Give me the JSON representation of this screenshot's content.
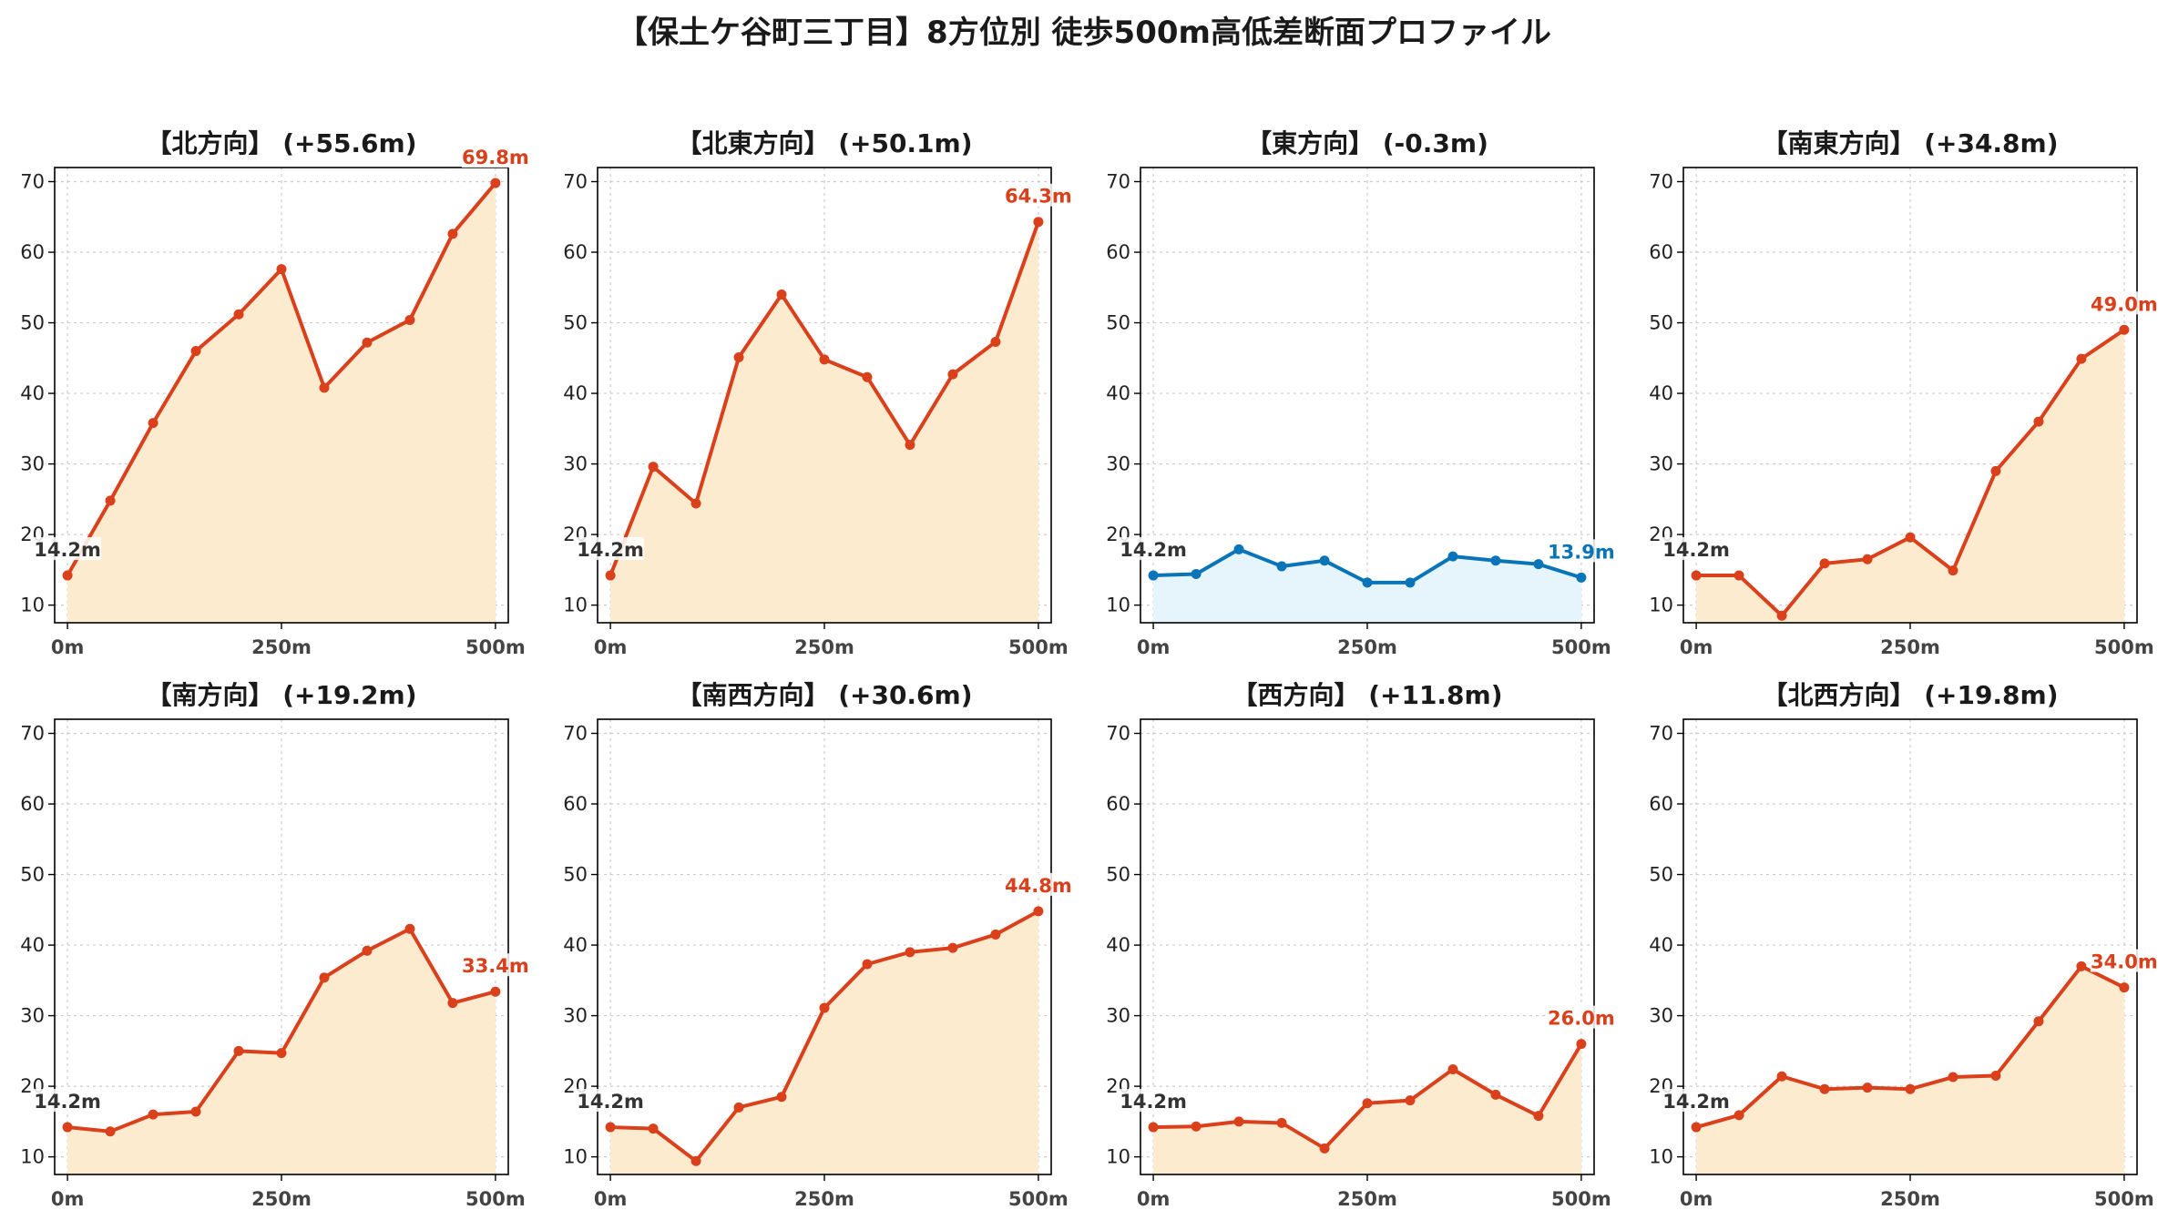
{
  "figure": {
    "title": "【保土ケ谷町三丁目】8方位別 徒歩500m高低差断面プロファイル"
  },
  "style": {
    "up_line": "#d9401b",
    "up_fill": "#fdebd0",
    "down_line": "#0a74b8",
    "down_fill": "#e6f5fb",
    "start_label": "#333333",
    "grid": "#cccccc"
  },
  "axes_common": {
    "xticks": [
      0,
      250,
      500
    ],
    "xticklabels": [
      "0m",
      "250m",
      "500m"
    ],
    "yticks": [
      10,
      20,
      30,
      40,
      50,
      60,
      70
    ],
    "yticklabels": [
      "10",
      "20",
      "30",
      "40",
      "50",
      "60",
      "70"
    ],
    "xlim": [
      -15,
      515
    ],
    "ylim": [
      7.5,
      72
    ],
    "grid": true
  },
  "chart_data": [
    {
      "type": "area",
      "title": "【北方向】 (+55.6m)",
      "trend": "up",
      "x": [
        0,
        50,
        100,
        150,
        200,
        250,
        300,
        350,
        400,
        450,
        500
      ],
      "y": [
        14.2,
        24.8,
        35.8,
        46.0,
        51.2,
        57.6,
        40.8,
        47.2,
        50.4,
        62.6,
        69.8
      ],
      "start_label": "14.2m",
      "end_label": "69.8m"
    },
    {
      "type": "area",
      "title": "【北東方向】 (+50.1m)",
      "trend": "up",
      "x": [
        0,
        50,
        100,
        150,
        200,
        250,
        300,
        350,
        400,
        450,
        500
      ],
      "y": [
        14.2,
        29.6,
        24.4,
        45.1,
        54.0,
        44.8,
        42.3,
        32.7,
        42.7,
        47.3,
        64.3
      ],
      "start_label": "14.2m",
      "end_label": "64.3m"
    },
    {
      "type": "area",
      "title": "【東方向】 (-0.3m)",
      "trend": "down",
      "x": [
        0,
        50,
        100,
        150,
        200,
        250,
        300,
        350,
        400,
        450,
        500
      ],
      "y": [
        14.2,
        14.4,
        17.9,
        15.5,
        16.3,
        13.2,
        13.2,
        16.9,
        16.3,
        15.8,
        13.9
      ],
      "start_label": "14.2m",
      "end_label": "13.9m"
    },
    {
      "type": "area",
      "title": "【南東方向】 (+34.8m)",
      "trend": "up",
      "x": [
        0,
        50,
        100,
        150,
        200,
        250,
        300,
        350,
        400,
        450,
        500
      ],
      "y": [
        14.2,
        14.2,
        8.5,
        15.9,
        16.5,
        19.6,
        14.9,
        29.0,
        36.0,
        44.9,
        49.0
      ],
      "start_label": "14.2m",
      "end_label": "49.0m"
    },
    {
      "type": "area",
      "title": "【南方向】 (+19.2m)",
      "trend": "up",
      "x": [
        0,
        50,
        100,
        150,
        200,
        250,
        300,
        350,
        400,
        450,
        500
      ],
      "y": [
        14.2,
        13.6,
        16.0,
        16.4,
        25.0,
        24.7,
        35.4,
        39.2,
        42.3,
        31.8,
        33.4
      ],
      "start_label": "14.2m",
      "end_label": "33.4m"
    },
    {
      "type": "area",
      "title": "【南西方向】 (+30.6m)",
      "trend": "up",
      "x": [
        0,
        50,
        100,
        150,
        200,
        250,
        300,
        350,
        400,
        450,
        500
      ],
      "y": [
        14.2,
        14.0,
        9.4,
        17.0,
        18.5,
        31.1,
        37.3,
        39.0,
        39.6,
        41.5,
        44.8
      ],
      "start_label": "14.2m",
      "end_label": "44.8m"
    },
    {
      "type": "area",
      "title": "【西方向】 (+11.8m)",
      "trend": "up",
      "x": [
        0,
        50,
        100,
        150,
        200,
        250,
        300,
        350,
        400,
        450,
        500
      ],
      "y": [
        14.2,
        14.3,
        15.0,
        14.8,
        11.2,
        17.6,
        18.0,
        22.4,
        18.8,
        15.8,
        26.0
      ],
      "start_label": "14.2m",
      "end_label": "26.0m"
    },
    {
      "type": "area",
      "title": "【北西方向】 (+19.8m)",
      "trend": "up",
      "x": [
        0,
        50,
        100,
        150,
        200,
        250,
        300,
        350,
        400,
        450,
        500
      ],
      "y": [
        14.2,
        15.9,
        21.4,
        19.6,
        19.8,
        19.6,
        21.3,
        21.5,
        29.2,
        37.0,
        34.0
      ],
      "start_label": "14.2m",
      "end_label": "34.0m"
    }
  ]
}
